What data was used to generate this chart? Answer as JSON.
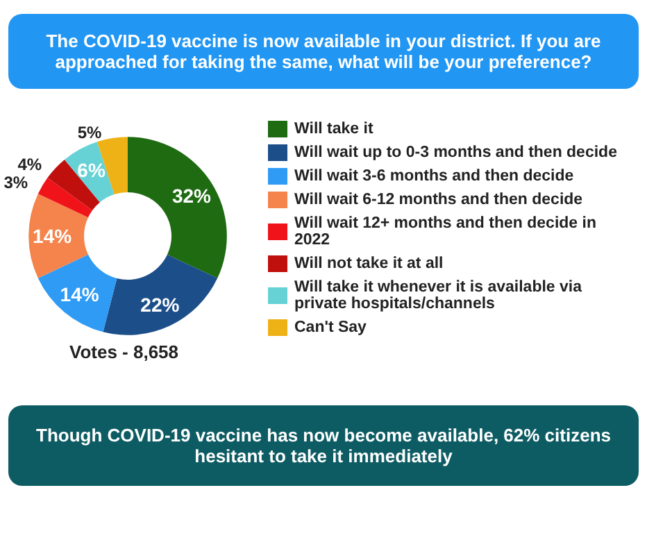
{
  "chart_data": {
    "type": "donut",
    "title": "The COVID-19 vaccine is now available in your district. If you are approached for taking the same, what will be your preference?",
    "subtitle": "Though COVID-19 vaccine has now become available, 62% citizens hesitant to take it immediately",
    "categories": [
      "Will take it",
      "Will wait up to 0-3 months and then decide",
      "Will wait 3-6 months and then decide",
      "Will wait 6-12 months and then decide",
      "Will wait 12+ months and then decide in 2022",
      "Will not take it at all",
      "Will take it whenever it is available via private hospitals/channels",
      "Can't Say"
    ],
    "values": [
      32,
      22,
      14,
      14,
      3,
      4,
      6,
      5
    ],
    "colors": [
      "#1e6b12",
      "#1c4f8a",
      "#2f9bf5",
      "#f4844c",
      "#f0141a",
      "#c0100e",
      "#66d2d6",
      "#eeb116"
    ],
    "value_labels": [
      "32%",
      "22%",
      "14%",
      "14%",
      "3%",
      "4%",
      "6%",
      "5%"
    ],
    "legend": "right",
    "annotations": [
      "Votes - 8,658"
    ]
  }
}
